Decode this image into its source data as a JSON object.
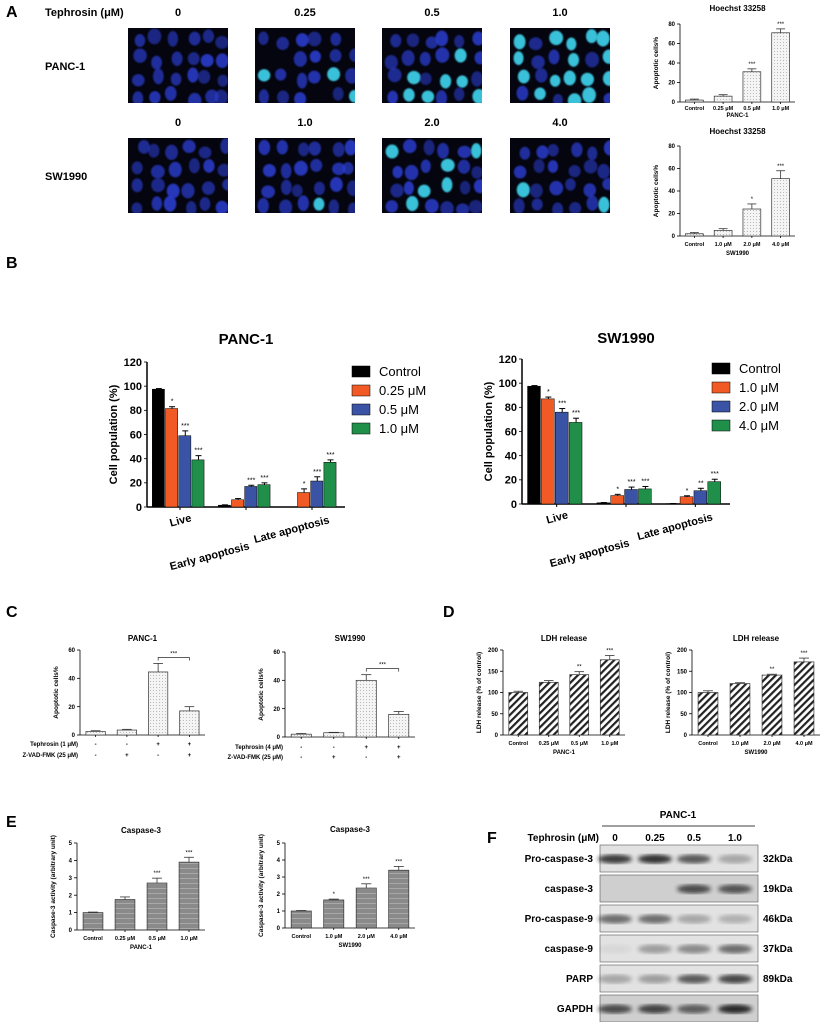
{
  "panel_labels": [
    "A",
    "B",
    "C",
    "D",
    "E",
    "F"
  ],
  "panel_a": {
    "header_label": "Tephrosin (μM)",
    "rows": [
      {
        "cell_line": "PANC-1",
        "doses": [
          "0",
          "0.25",
          "0.5",
          "1.0"
        ]
      },
      {
        "cell_line": "SW1990",
        "doses": [
          "0",
          "1.0",
          "2.0",
          "4.0"
        ]
      }
    ],
    "colors": {
      "background": "#05050f",
      "nucleus": "#2a3ccf",
      "apoptotic": "#3fd6f0"
    }
  },
  "panel_f": {
    "title": "PANC-1",
    "dose_label": "Tephrosin (μM)",
    "doses": [
      "0",
      "0.25",
      "0.5",
      "1.0"
    ],
    "bands": [
      {
        "protein": "Pro-caspase-3",
        "size": "32kDa",
        "intensity": [
          0.85,
          0.9,
          0.7,
          0.3
        ]
      },
      {
        "protein": "caspase-3",
        "size": "19kDa",
        "intensity": [
          0,
          0,
          0.75,
          0.7
        ]
      },
      {
        "protein": "Pro-caspase-9",
        "size": "46kDa",
        "intensity": [
          0.6,
          0.6,
          0.3,
          0.25
        ]
      },
      {
        "protein": "caspase-9",
        "size": "37kDa",
        "intensity": [
          0.05,
          0.35,
          0.45,
          0.6
        ]
      },
      {
        "protein": "PARP",
        "size": "89kDa",
        "intensity": [
          0.3,
          0.35,
          0.7,
          0.8
        ]
      },
      {
        "protein": "GAPDH",
        "size": "",
        "intensity": [
          0.75,
          0.8,
          0.65,
          0.95
        ]
      }
    ]
  },
  "chart_data": [
    {
      "panel": "A",
      "type": "bar",
      "title": "Hoechst 33258",
      "ylabel": "Apoptotic cells%",
      "xlabel": "PANC-1",
      "categories": [
        "Control",
        "0.25 μM",
        "0.5 μM",
        "1.0 μM"
      ],
      "values": [
        2,
        6,
        31,
        71
      ],
      "errors": [
        1,
        1.5,
        3,
        4
      ],
      "significance": [
        "",
        "",
        "***",
        "***"
      ],
      "ylim": [
        0,
        80
      ],
      "yticks": [
        0,
        20,
        40,
        60,
        80
      ],
      "fill": "dotted-light-grey"
    },
    {
      "panel": "A",
      "type": "bar",
      "title": "Hoechst 33258",
      "ylabel": "Apoptotic cells%",
      "xlabel": "SW1990",
      "categories": [
        "Control",
        "1.0 μM",
        "2.0 μM",
        "4.0 μM"
      ],
      "values": [
        2,
        5,
        24,
        51
      ],
      "errors": [
        1,
        1.5,
        4.5,
        7
      ],
      "significance": [
        "",
        "",
        "*",
        "***"
      ],
      "ylim": [
        0,
        80
      ],
      "yticks": [
        0,
        20,
        40,
        60,
        80
      ],
      "fill": "dotted-light-grey"
    },
    {
      "panel": "B",
      "type": "bar",
      "title": "PANC-1",
      "ylabel": "Cell population (%)",
      "categories": [
        "Live",
        "Early apoptosis",
        "Late apoptosis"
      ],
      "ylim": [
        0,
        120
      ],
      "yticks": [
        0,
        20,
        40,
        60,
        80,
        100,
        120
      ],
      "legend": "right",
      "series": [
        {
          "name": "Control",
          "color": "#000000",
          "values": [
            97.5,
            1.5,
            0
          ],
          "errors": [
            0.5,
            0.3,
            0
          ],
          "significance": [
            "",
            "",
            ""
          ]
        },
        {
          "name": "0.25 μM",
          "color": "#f15a24",
          "values": [
            81.5,
            6,
            12
          ],
          "errors": [
            1.5,
            1,
            3
          ],
          "significance": [
            "*",
            "",
            "*"
          ]
        },
        {
          "name": "0.5 μM",
          "color": "#3a53a4",
          "values": [
            59,
            17,
            21.5
          ],
          "errors": [
            4,
            1,
            3.5
          ],
          "significance": [
            "***",
            "***",
            "***"
          ]
        },
        {
          "name": "1.0 μM",
          "color": "#1f8f4a",
          "values": [
            39,
            18.5,
            37
          ],
          "errors": [
            3.5,
            1.5,
            2
          ],
          "significance": [
            "***",
            "***",
            "***"
          ]
        }
      ]
    },
    {
      "panel": "B",
      "type": "bar",
      "title": "SW1990",
      "ylabel": "Cell population (%)",
      "categories": [
        "Live",
        "Early apoptosis",
        "Late apoptosis"
      ],
      "ylim": [
        0,
        120
      ],
      "yticks": [
        0,
        20,
        40,
        60,
        80,
        100,
        120
      ],
      "legend": "right",
      "series": [
        {
          "name": "Control",
          "color": "#000000",
          "values": [
            97.5,
            1,
            0.3
          ],
          "errors": [
            0.5,
            0.2,
            0.1
          ],
          "significance": [
            "",
            "",
            ""
          ]
        },
        {
          "name": "1.0 μM",
          "color": "#f15a24",
          "values": [
            87,
            7,
            6
          ],
          "errors": [
            1.5,
            1,
            0.8
          ],
          "significance": [
            "*",
            "*",
            "*"
          ]
        },
        {
          "name": "2.0 μM",
          "color": "#3a53a4",
          "values": [
            76,
            12,
            11
          ],
          "errors": [
            3,
            2,
            2
          ],
          "significance": [
            "***",
            "***",
            "**"
          ]
        },
        {
          "name": "4.0 μM",
          "color": "#1f8f4a",
          "values": [
            67.5,
            12.5,
            18.5
          ],
          "errors": [
            3.5,
            2,
            2
          ],
          "significance": [
            "***",
            "***",
            "***"
          ]
        }
      ]
    },
    {
      "panel": "C",
      "type": "bar",
      "title": "PANC-1",
      "ylabel": "Apoptotic cells%",
      "values": [
        2.5,
        3.5,
        44.5,
        17
      ],
      "errors": [
        0.5,
        0.5,
        6,
        3
      ],
      "ylim": [
        0,
        60
      ],
      "yticks": [
        0,
        20,
        40,
        60
      ],
      "fill": "dotted-light-grey",
      "treatment_rows": [
        {
          "label": "Tephrosin (1 μM)",
          "signs": [
            "-",
            "-",
            "+",
            "+"
          ]
        },
        {
          "label": "Z-VAD-FMK (25 μM)",
          "signs": [
            "-",
            "+",
            "-",
            "+"
          ]
        }
      ],
      "comparison": {
        "bars": [
          2,
          3
        ],
        "label": "***"
      }
    },
    {
      "panel": "C",
      "type": "bar",
      "title": "SW1990",
      "ylabel": "Apoptotic cells%",
      "values": [
        2,
        3,
        40,
        16
      ],
      "errors": [
        0.5,
        0.3,
        4,
        2
      ],
      "ylim": [
        0,
        60
      ],
      "yticks": [
        0,
        20,
        40,
        60
      ],
      "fill": "dotted-light-grey",
      "treatment_rows": [
        {
          "label": "Tephrosin (4 μM)",
          "signs": [
            "-",
            "-",
            "+",
            "+"
          ]
        },
        {
          "label": "Z-VAD-FMK (25 μM)",
          "signs": [
            "-",
            "+",
            "-",
            "+"
          ]
        }
      ],
      "comparison": {
        "bars": [
          2,
          3
        ],
        "label": "***"
      }
    },
    {
      "panel": "D",
      "type": "bar",
      "title": "LDH release",
      "ylabel": "LDH release (% of control)",
      "xlabel": "PANC-1",
      "categories": [
        "Control",
        "0.25 μM",
        "0.5 μM",
        "1.0 μM"
      ],
      "values": [
        100,
        124,
        142,
        177
      ],
      "errors": [
        3,
        4,
        7,
        10
      ],
      "significance": [
        "",
        "",
        "**",
        "***"
      ],
      "ylim": [
        0,
        200
      ],
      "yticks": [
        0,
        50,
        100,
        150,
        200
      ],
      "fill": "diagonal-hatch"
    },
    {
      "panel": "D",
      "type": "bar",
      "title": "LDH release",
      "ylabel": "LDH release (% of control)",
      "xlabel": "SW1990",
      "categories": [
        "Control",
        "1.0 μM",
        "2.0 μM",
        "4.0 μM"
      ],
      "values": [
        100,
        121,
        141,
        172
      ],
      "errors": [
        4,
        2,
        2,
        9
      ],
      "significance": [
        "",
        "",
        "**",
        "***"
      ],
      "ylim": [
        0,
        200
      ],
      "yticks": [
        0,
        50,
        100,
        150,
        200
      ],
      "fill": "diagonal-hatch"
    },
    {
      "panel": "E",
      "type": "bar",
      "title": "Caspase-3",
      "ylabel": "Caspase-3 activity (arbitrary unit)",
      "xlabel": "PANC-1",
      "categories": [
        "Control",
        "0.25 μM",
        "0.5 μM",
        "1.0 μM"
      ],
      "values": [
        1,
        1.75,
        2.7,
        3.9
      ],
      "errors": [
        0.03,
        0.15,
        0.28,
        0.28
      ],
      "significance": [
        "",
        "",
        "***",
        "***"
      ],
      "ylim": [
        0,
        5
      ],
      "yticks": [
        0,
        1,
        2,
        3,
        4,
        5
      ],
      "fill": "grey-lines"
    },
    {
      "panel": "E",
      "type": "bar",
      "title": "Caspase-3",
      "ylabel": "Caspase-3 activity (arbitrary unit)",
      "xlabel": "SW1990",
      "categories": [
        "Control",
        "1.0 μM",
        "2.0 μM",
        "4.0 μM"
      ],
      "values": [
        1,
        1.65,
        2.35,
        3.4
      ],
      "errors": [
        0.03,
        0.05,
        0.25,
        0.22
      ],
      "significance": [
        "",
        "*",
        "***",
        "***"
      ],
      "ylim": [
        0,
        5
      ],
      "yticks": [
        0,
        1,
        2,
        3,
        4,
        5
      ],
      "fill": "grey-lines"
    }
  ]
}
